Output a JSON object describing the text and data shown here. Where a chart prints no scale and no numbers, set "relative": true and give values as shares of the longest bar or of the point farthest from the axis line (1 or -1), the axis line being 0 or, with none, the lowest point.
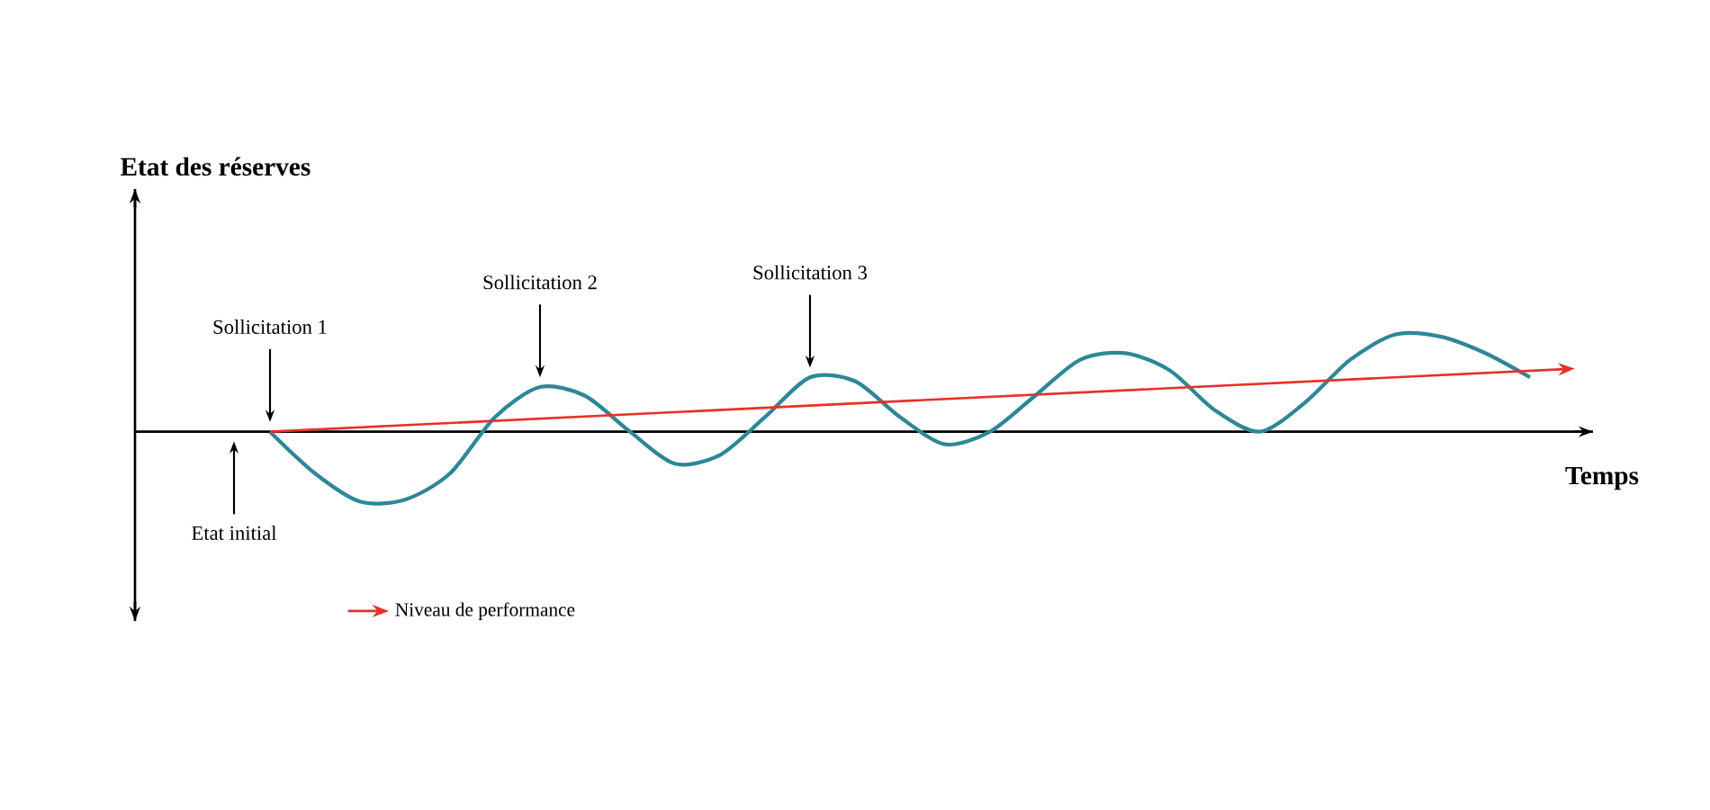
{
  "chart_data": {
    "type": "line",
    "relative": true,
    "tick_labels": false,
    "legend": "bottom left",
    "title": "Etat des réserves",
    "xlabel": "Temps",
    "categories": [
      null,
      null,
      null,
      null,
      null,
      null,
      null,
      null,
      null,
      null,
      null,
      null,
      null,
      null,
      null,
      null,
      null,
      null,
      null,
      null,
      null,
      null,
      null,
      null,
      null,
      null,
      null,
      null,
      null,
      null,
      null,
      null,
      null
    ],
    "series": [
      {
        "color": "#2e8797",
        "values": [
          null,
          null,
          null,
          0,
          -0.43,
          -0.72,
          -0.7,
          -0.43,
          0.15,
          0.46,
          0.37,
          0,
          -0.33,
          -0.24,
          0.15,
          0.56,
          0.52,
          0.15,
          -0.13,
          0,
          0.37,
          0.74,
          0.81,
          0.63,
          0.22,
          0,
          0.3,
          0.74,
          1,
          0.98,
          0.81,
          0.56,
          null
        ]
      },
      {
        "name": "Niveau de performance",
        "color": "#e8302a",
        "values": [
          null,
          null,
          null,
          0,
          null,
          null,
          null,
          null,
          null,
          null,
          null,
          null,
          null,
          null,
          null,
          null,
          null,
          null,
          null,
          null,
          null,
          null,
          null,
          null,
          null,
          null,
          null,
          null,
          null,
          null,
          null,
          null,
          0.65
        ]
      }
    ],
    "annotations": [
      "Sollicitation 1",
      "Sollicitation 2",
      "Sollicitation 3",
      "Etat initial"
    ]
  }
}
